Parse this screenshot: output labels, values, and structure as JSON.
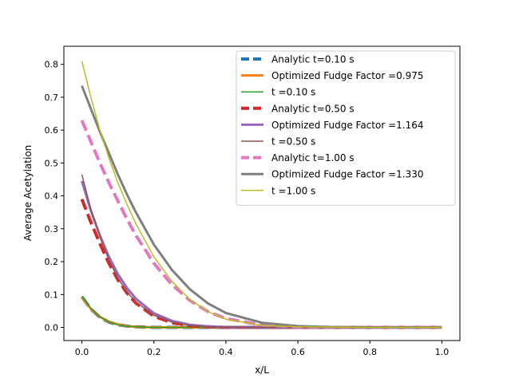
{
  "chart_data": {
    "type": "line",
    "title": "",
    "xlabel": "x/L",
    "ylabel": "Average Acetylation",
    "xlim": [
      -0.05,
      1.05
    ],
    "ylim": [
      -0.04,
      0.855
    ],
    "xticks": [
      0.0,
      0.2,
      0.4,
      0.6,
      0.8,
      1.0
    ],
    "xtick_labels": [
      "0.0",
      "0.2",
      "0.4",
      "0.6",
      "0.8",
      "1.0"
    ],
    "yticks": [
      0.0,
      0.1,
      0.2,
      0.3,
      0.4,
      0.5,
      0.6,
      0.7,
      0.8
    ],
    "ytick_labels": [
      "0.0",
      "0.1",
      "0.2",
      "0.3",
      "0.4",
      "0.5",
      "0.6",
      "0.7",
      "0.8"
    ],
    "grid": false,
    "legend_position": "top-right",
    "x": [
      0.0,
      0.025,
      0.05,
      0.075,
      0.1,
      0.125,
      0.15,
      0.2,
      0.25,
      0.3,
      0.35,
      0.4,
      0.5,
      0.6,
      0.7,
      0.8,
      0.9,
      1.0
    ],
    "series": [
      {
        "name": "Analytic t=0.10 s",
        "color": "#1f77b4",
        "style": "dashed",
        "values": [
          0.093,
          0.056,
          0.031,
          0.016,
          0.008,
          0.004,
          0.002,
          0.0,
          0.0,
          0.0,
          0.0,
          0.0,
          0.0,
          0.0,
          0.0,
          0.0,
          0.0,
          0.0
        ]
      },
      {
        "name": "Optimized Fudge Factor =0.975",
        "color": "#ff7f0e",
        "style": "solid",
        "values": [
          0.092,
          0.056,
          0.032,
          0.017,
          0.009,
          0.004,
          0.002,
          0.0,
          0.0,
          0.0,
          0.0,
          0.0,
          0.0,
          0.0,
          0.0,
          0.0,
          0.0,
          0.0
        ]
      },
      {
        "name": "t =0.10 s",
        "color": "#2ca02c",
        "style": "thin",
        "values": [
          0.095,
          0.058,
          0.032,
          0.017,
          0.008,
          0.004,
          0.002,
          0.0,
          0.0,
          0.0,
          0.0,
          0.0,
          0.0,
          0.0,
          0.0,
          0.0,
          0.0,
          0.0
        ]
      },
      {
        "name": "Analytic t=0.50 s",
        "color": "#d62728",
        "style": "dashed",
        "values": [
          0.39,
          0.32,
          0.255,
          0.195,
          0.145,
          0.105,
          0.074,
          0.034,
          0.014,
          0.005,
          0.002,
          0.0,
          0.0,
          0.0,
          0.0,
          0.0,
          0.0,
          0.0
        ]
      },
      {
        "name": "Optimized Fudge Factor =1.164",
        "color": "#9467bd",
        "style": "solid",
        "values": [
          0.445,
          0.355,
          0.28,
          0.215,
          0.162,
          0.12,
          0.087,
          0.043,
          0.02,
          0.008,
          0.003,
          0.001,
          0.0,
          0.0,
          0.0,
          0.0,
          0.0,
          0.0
        ]
      },
      {
        "name": "t =0.50 s",
        "color": "#8c564b",
        "style": "thin",
        "values": [
          0.465,
          0.36,
          0.275,
          0.205,
          0.15,
          0.108,
          0.077,
          0.037,
          0.016,
          0.006,
          0.002,
          0.001,
          0.0,
          0.0,
          0.0,
          0.0,
          0.0,
          0.0
        ]
      },
      {
        "name": "Analytic t=1.00 s",
        "color": "#e377c2",
        "style": "dashed",
        "values": [
          0.63,
          0.565,
          0.5,
          0.44,
          0.385,
          0.33,
          0.28,
          0.195,
          0.13,
          0.082,
          0.048,
          0.027,
          0.007,
          0.002,
          0.0,
          0.0,
          0.0,
          0.0
        ]
      },
      {
        "name": "Optimized Fudge Factor =1.330",
        "color": "#7f7f7f",
        "style": "solid",
        "values": [
          0.735,
          0.665,
          0.595,
          0.53,
          0.465,
          0.405,
          0.35,
          0.252,
          0.175,
          0.116,
          0.073,
          0.044,
          0.014,
          0.004,
          0.001,
          0.0,
          0.0,
          0.0
        ]
      },
      {
        "name": "t =1.00 s",
        "color": "#bcbd22",
        "style": "thin",
        "values": [
          0.81,
          0.7,
          0.6,
          0.515,
          0.44,
          0.375,
          0.315,
          0.215,
          0.14,
          0.085,
          0.048,
          0.025,
          0.006,
          0.002,
          0.001,
          0.0,
          0.0,
          0.0
        ]
      }
    ]
  }
}
